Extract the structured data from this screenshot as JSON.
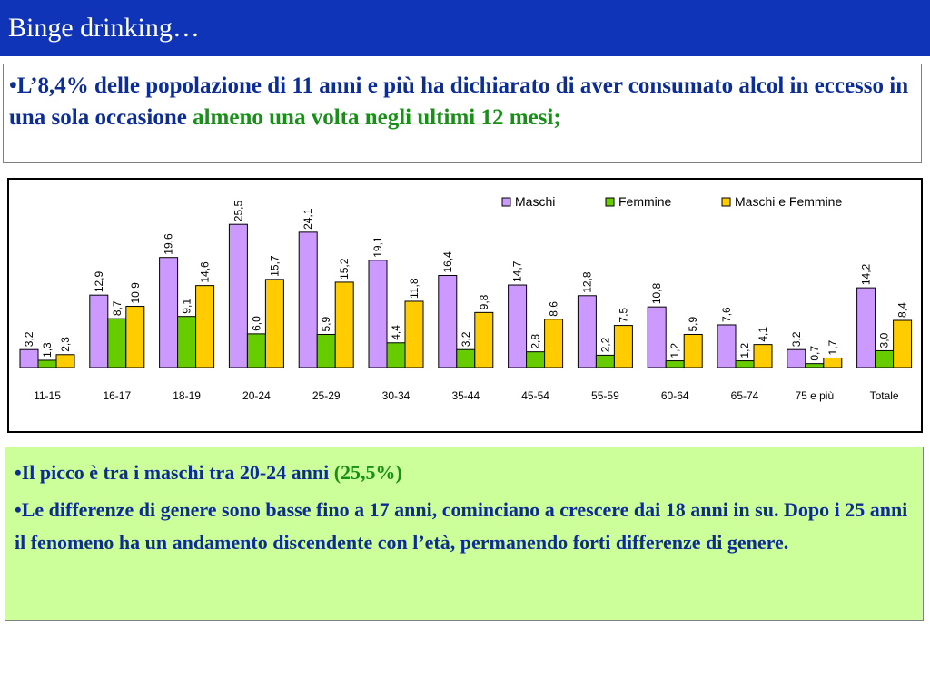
{
  "title": "Binge drinking…",
  "intro": {
    "bullet": "•",
    "text_blue": "L’8,4% delle popolazione di 11 anni e più ha dichiarato di aver consumato alcol in eccesso in una sola occasione ",
    "text_green": "almeno una volta negli ultimi 12 mesi;"
  },
  "notes": {
    "bullet": "•",
    "item1_blue": "Il picco è tra i maschi tra 20-24 anni ",
    "item1_green": "(25,5%)",
    "item2_blue": "Le differenze di genere sono basse fino a 17 anni, cominciano a crescere dai 18 anni in su. Dopo i 25 anni il fenomeno ha un andamento discendente con l’età, permanendo forti differenze di genere."
  },
  "chart_data": {
    "type": "bar",
    "title": "",
    "xlabel": "",
    "ylabel": "",
    "ylim": [
      0,
      26.5
    ],
    "grid": false,
    "legend_position": "top-right",
    "categories": [
      "11-15",
      "16-17",
      "18-19",
      "20-24",
      "25-29",
      "30-34",
      "35-44",
      "45-54",
      "55-59",
      "60-64",
      "65-74",
      "75 e più",
      "Totale"
    ],
    "series": [
      {
        "name": "Maschi",
        "color": "#cc99ff",
        "values": [
          3.2,
          12.9,
          19.6,
          25.5,
          24.1,
          19.1,
          16.4,
          14.7,
          12.8,
          10.8,
          7.6,
          3.2,
          14.2
        ],
        "labels": [
          "3,2",
          "12,9",
          "19,6",
          "25,5",
          "24,1",
          "19,1",
          "16,4",
          "14,7",
          "12,8",
          "10,8",
          "7,6",
          "3,2",
          "14,2"
        ]
      },
      {
        "name": "Femmine",
        "color": "#66cc00",
        "values": [
          1.3,
          8.7,
          9.1,
          6.0,
          5.9,
          4.4,
          3.2,
          2.8,
          2.2,
          1.2,
          1.2,
          0.7,
          3.0
        ],
        "labels": [
          "1,3",
          "8,7",
          "9,1",
          "6,0",
          "5,9",
          "4,4",
          "3,2",
          "2,8",
          "2,2",
          "1,2",
          "1,2",
          "0,7",
          "3,0"
        ]
      },
      {
        "name": "Maschi e Femmine",
        "color": "#ffcc00",
        "values": [
          2.3,
          10.9,
          14.6,
          15.7,
          15.2,
          11.8,
          9.8,
          8.6,
          7.5,
          5.9,
          4.1,
          1.7,
          8.4
        ],
        "labels": [
          "2,3",
          "10,9",
          "14,6",
          "15,7",
          "15,2",
          "11,8",
          "9,8",
          "8,6",
          "7,5",
          "5,9",
          "4,1",
          "1,7",
          "8,4"
        ]
      }
    ]
  }
}
